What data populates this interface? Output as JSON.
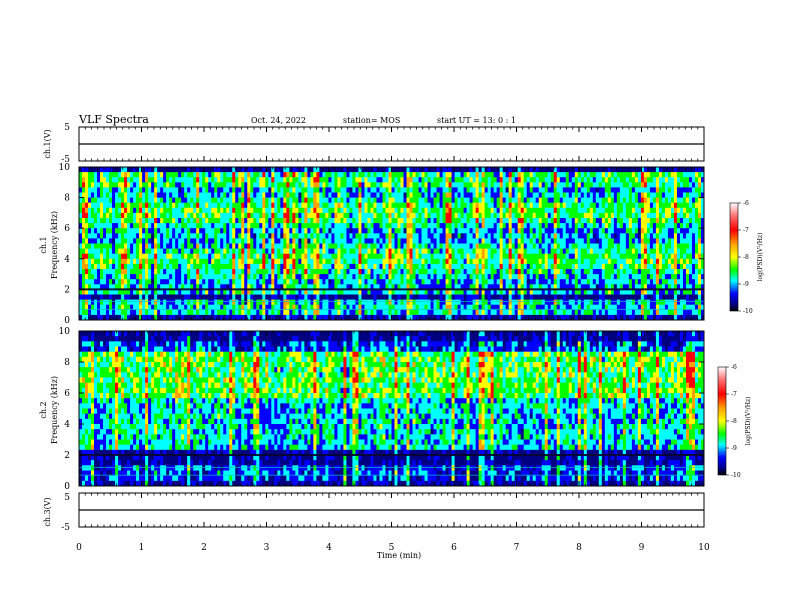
{
  "header": {
    "title": "VLF Spectra",
    "date": "Oct. 24, 2022",
    "station": "station= MOS",
    "start_ut": "start  UT =   13: 0  : 1"
  },
  "chart_data": [
    {
      "id": "ch1-voltage",
      "type": "line",
      "ylabel": "ch.1(V)",
      "ylim": [
        -5,
        5
      ],
      "yticks": [
        "5",
        "-5"
      ],
      "baseline_value": 0
    },
    {
      "id": "ch1-spectrogram",
      "type": "heatmap",
      "ylabel": "ch.1\nFrequency (kHz)",
      "ylim": [
        0,
        10
      ],
      "yticks": [
        "0",
        "2",
        "4",
        "6",
        "8",
        "10"
      ],
      "colorbar": {
        "label": "log(PSD)(V²/Hz)",
        "range": [
          -10,
          -6
        ],
        "ticks": [
          "-6",
          "-7",
          "-8",
          "-9",
          "-10"
        ],
        "colors": [
          "#ffffff",
          "#ff6464",
          "#ff0000",
          "#ffa000",
          "#ffff00",
          "#00ff00",
          "#00ffff",
          "#0000ff",
          "#000080",
          "#000000"
        ]
      }
    },
    {
      "id": "ch2-spectrogram",
      "type": "heatmap",
      "ylabel": "ch.2\nFrequency (kHz)",
      "ylim": [
        0,
        10
      ],
      "yticks": [
        "0",
        "2",
        "4",
        "6",
        "8",
        "10"
      ],
      "colorbar": {
        "label": "log(PSD)(V²/Hz)",
        "range": [
          -10,
          -6
        ],
        "ticks": [
          "-6",
          "-7",
          "-8",
          "-9",
          "-10"
        ],
        "colors": [
          "#ffffff",
          "#ff6464",
          "#ff0000",
          "#ffa000",
          "#ffff00",
          "#00ff00",
          "#00ffff",
          "#0000ff",
          "#000080",
          "#000000"
        ]
      }
    },
    {
      "id": "ch3-voltage",
      "type": "line",
      "ylabel": "ch.3(V)",
      "ylim": [
        -5,
        5
      ],
      "yticks": [
        "5",
        "-5"
      ],
      "baseline_value": 0
    }
  ],
  "xaxis": {
    "label": "Time  (min)",
    "range": [
      0,
      10
    ],
    "ticks": [
      "0",
      "1",
      "2",
      "3",
      "4",
      "5",
      "6",
      "7",
      "8",
      "9",
      "10"
    ]
  }
}
